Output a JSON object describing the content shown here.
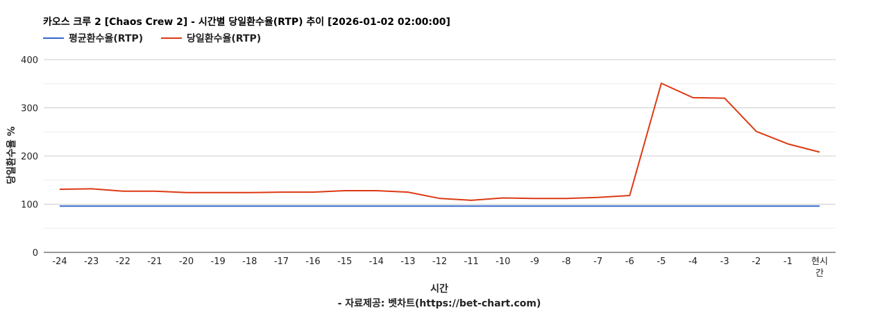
{
  "chart_data": {
    "type": "line",
    "title": "카오스 크루 2 [Chaos Crew 2] - 시간별 당일환수율(RTP) 추이 [2026-01-02 02:00:00]",
    "xlabel": "시간",
    "ylabel": "당일환수율 %",
    "source": "- 자료제공: 벳차트(https://bet-chart.com)",
    "categories": [
      "-24",
      "-23",
      "-22",
      "-21",
      "-20",
      "-19",
      "-18",
      "-17",
      "-16",
      "-15",
      "-14",
      "-13",
      "-12",
      "-11",
      "-10",
      "-9",
      "-8",
      "-7",
      "-6",
      "-5",
      "-4",
      "-3",
      "-2",
      "-1",
      "현시간"
    ],
    "ylim": [
      0,
      400
    ],
    "yticks": [
      0,
      100,
      200,
      300,
      400
    ],
    "grid": true,
    "legend_position": "top-left",
    "series": [
      {
        "name": "평균환수율(RTP)",
        "color": "#3366cc",
        "values": [
          96,
          96,
          96,
          96,
          96,
          96,
          96,
          96,
          96,
          96,
          96,
          96,
          96,
          96,
          96,
          96,
          96,
          96,
          96,
          96,
          96,
          96,
          96,
          96,
          96
        ]
      },
      {
        "name": "당일환수율(RTP)",
        "color": "#dc3912",
        "values": [
          131,
          132,
          127,
          127,
          124,
          124,
          124,
          125,
          125,
          128,
          128,
          125,
          112,
          108,
          113,
          112,
          112,
          114,
          118,
          351,
          321,
          320,
          251,
          225,
          208
        ]
      }
    ]
  }
}
